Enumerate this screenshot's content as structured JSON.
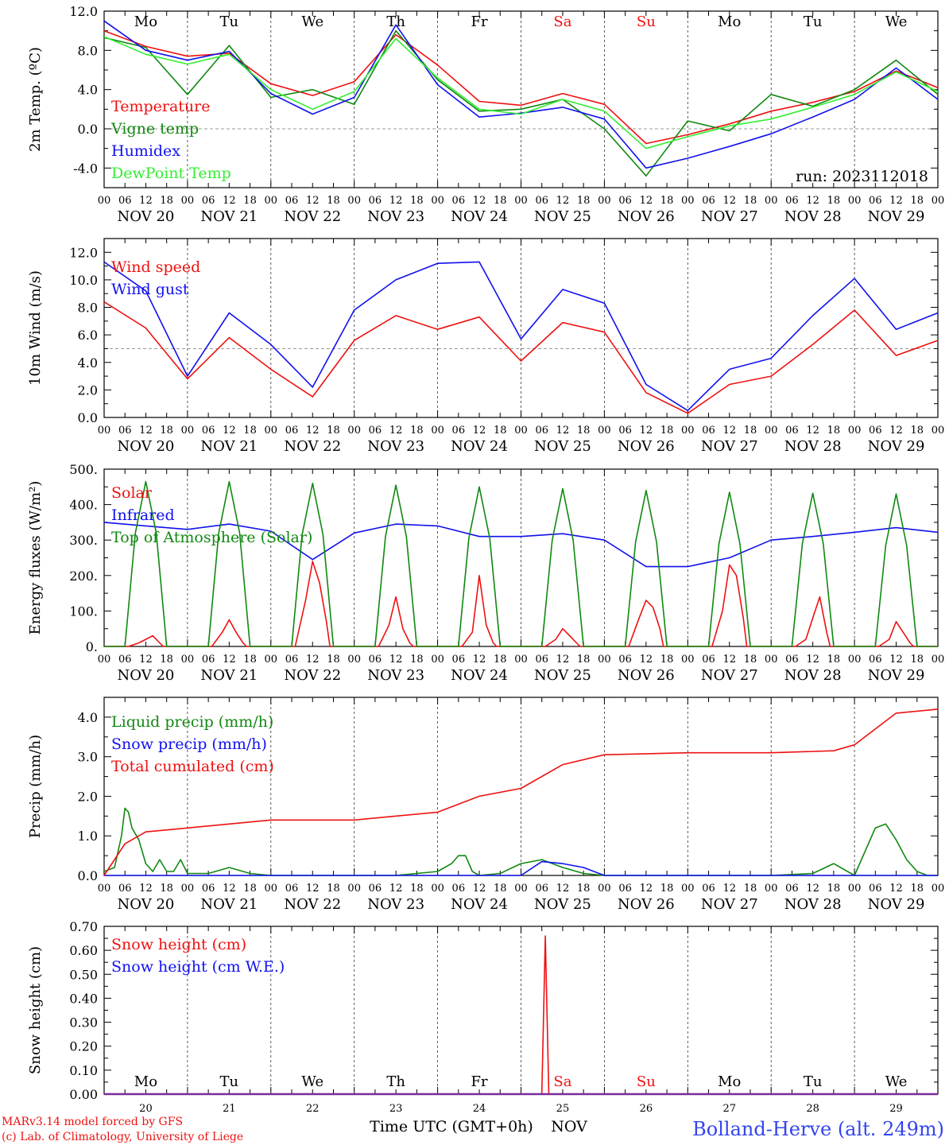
{
  "colors": {
    "red": "#ee1111",
    "green": "#118811",
    "blue": "#1111ee",
    "lime": "#33ee33",
    "grey": "#9a9a9a"
  },
  "days_of_week": [
    "Mo",
    "Tu",
    "We",
    "Th",
    "Fr",
    "Sa",
    "Su",
    "Mo",
    "Tu",
    "We"
  ],
  "weekend_days": [
    5,
    6
  ],
  "dates": [
    "NOV 20",
    "NOV 21",
    "NOV 22",
    "NOV 23",
    "NOV 24",
    "NOV 25",
    "NOV 26",
    "NOV 27",
    "NOV 28",
    "NOV 29"
  ],
  "hour_ticks": [
    "00",
    "06",
    "12",
    "18"
  ],
  "final_hour_tick": "00",
  "run_label": "run: 2023112018",
  "footer": {
    "model": "MARv3.14 model forced by GFS",
    "credit": "(c) Lab. of Climatology, University of Liege",
    "xlabel": "Time UTC (GMT+0h)",
    "month": "NOV",
    "day_numbers": [
      "20",
      "21",
      "22",
      "23",
      "24",
      "25",
      "26",
      "27",
      "28",
      "29"
    ],
    "station": "Bolland-Herve (alt. 249m)"
  },
  "chart_data": [
    {
      "type": "line",
      "ylabel": "2m Temp. (ºC)",
      "ylim": [
        -6,
        12
      ],
      "yticks": [
        "12.0",
        "8.0",
        "4.0",
        "0.0",
        "-4.0"
      ],
      "ytick_values": [
        12,
        8,
        4,
        0,
        -4
      ],
      "zero_line": 0,
      "x_unit": "hours since NOV 20 00 UTC",
      "series": [
        {
          "name": "Temperature",
          "color": "#ee1111",
          "x": [
            0,
            12,
            24,
            36,
            48,
            60,
            72,
            84,
            96,
            108,
            120,
            132,
            144,
            156,
            168,
            180,
            192,
            204,
            216,
            228,
            240
          ],
          "values": [
            10.0,
            8.4,
            7.4,
            7.7,
            4.6,
            3.4,
            4.8,
            9.6,
            6.5,
            2.8,
            2.4,
            3.6,
            2.5,
            -1.5,
            -0.6,
            0.5,
            1.8,
            2.7,
            3.8,
            5.9,
            4.2
          ]
        },
        {
          "name": "Vigne temp",
          "color": "#118811",
          "x": [
            0,
            12,
            24,
            36,
            48,
            60,
            72,
            84,
            96,
            108,
            120,
            132,
            144,
            156,
            168,
            180,
            192,
            204,
            216,
            228,
            240
          ],
          "values": [
            9.3,
            8.3,
            3.5,
            8.5,
            3.2,
            4.0,
            2.5,
            10.0,
            5.0,
            1.8,
            2.0,
            3.0,
            0.0,
            -4.8,
            0.8,
            -0.2,
            3.5,
            2.3,
            4.0,
            7.0,
            3.5
          ]
        },
        {
          "name": "Humidex",
          "color": "#1111ee",
          "x": [
            0,
            12,
            24,
            36,
            48,
            60,
            72,
            84,
            96,
            108,
            120,
            132,
            144,
            156,
            168,
            180,
            192,
            204,
            216,
            228,
            240
          ],
          "values": [
            11.0,
            8.0,
            7.0,
            7.9,
            3.6,
            1.5,
            3.2,
            10.6,
            4.5,
            1.2,
            1.6,
            2.2,
            1.0,
            -4.0,
            -3.0,
            -1.8,
            -0.5,
            1.2,
            3.0,
            6.2,
            3.0
          ]
        },
        {
          "name": "DewPoint Temp",
          "color": "#33ee33",
          "x": [
            0,
            12,
            24,
            36,
            48,
            60,
            72,
            84,
            96,
            108,
            120,
            132,
            144,
            156,
            168,
            180,
            192,
            204,
            216,
            228,
            240
          ],
          "values": [
            9.4,
            7.6,
            6.6,
            7.6,
            4.0,
            2.0,
            3.8,
            9.2,
            5.2,
            2.0,
            1.5,
            3.0,
            1.8,
            -2.0,
            -0.8,
            0.3,
            1.0,
            2.2,
            3.5,
            5.8,
            3.8
          ]
        }
      ]
    },
    {
      "type": "line",
      "ylabel": "10m Wind (m/s)",
      "ylim": [
        0,
        13
      ],
      "yticks": [
        "12.0",
        "10.0",
        "8.0",
        "6.0",
        "4.0",
        "2.0",
        "0.0"
      ],
      "ytick_values": [
        12,
        10,
        8,
        6,
        4,
        2,
        0
      ],
      "reference_line": 5,
      "x_unit": "hours since NOV 20 00 UTC",
      "series": [
        {
          "name": "Wind speed",
          "color": "#ee1111",
          "x": [
            0,
            12,
            24,
            36,
            48,
            60,
            72,
            84,
            96,
            108,
            120,
            132,
            144,
            156,
            168,
            180,
            192,
            204,
            216,
            228,
            240
          ],
          "values": [
            8.4,
            6.5,
            2.8,
            5.8,
            3.5,
            1.5,
            5.6,
            7.4,
            6.4,
            7.3,
            4.1,
            6.9,
            6.2,
            1.8,
            0.3,
            2.4,
            3.0,
            5.3,
            7.8,
            4.5,
            5.6
          ]
        },
        {
          "name": "Wind gust",
          "color": "#1111ee",
          "x": [
            0,
            12,
            24,
            36,
            48,
            60,
            72,
            84,
            96,
            108,
            120,
            132,
            144,
            156,
            168,
            180,
            192,
            204,
            216,
            228,
            240
          ],
          "values": [
            11.3,
            9.2,
            3.0,
            7.6,
            5.3,
            2.2,
            7.8,
            10.0,
            11.2,
            11.3,
            5.7,
            9.3,
            8.3,
            2.4,
            0.5,
            3.5,
            4.3,
            7.4,
            10.1,
            6.4,
            7.6
          ]
        }
      ]
    },
    {
      "type": "line",
      "ylabel": "Energy fluxes (W/m²)",
      "ylim": [
        0,
        500
      ],
      "yticks": [
        "500.",
        "400.",
        "300.",
        "200.",
        "100.",
        "0."
      ],
      "ytick_values": [
        500,
        400,
        300,
        200,
        100,
        0
      ],
      "x_unit": "hours since NOV 20 00 UTC",
      "series": [
        {
          "name": "Solar",
          "color": "#ee1111",
          "x": [
            0,
            7,
            10,
            12,
            14,
            16,
            17,
            24,
            31,
            34,
            36,
            38,
            40,
            41,
            48,
            55,
            58,
            60,
            62,
            64,
            65,
            72,
            79,
            82,
            84,
            86,
            88,
            89,
            96,
            103,
            106,
            108,
            110,
            112,
            113,
            120,
            127,
            130,
            132,
            134,
            136,
            137,
            144,
            151,
            154,
            156,
            158,
            160,
            161,
            168,
            175,
            178,
            180,
            182,
            184,
            185,
            192,
            199,
            202,
            204,
            206,
            208,
            209,
            216,
            223,
            226,
            228,
            230,
            232,
            233,
            240
          ],
          "values": [
            0,
            0,
            10,
            20,
            30,
            10,
            0,
            0,
            0,
            40,
            75,
            40,
            10,
            0,
            0,
            0,
            130,
            240,
            180,
            70,
            0,
            0,
            0,
            60,
            140,
            50,
            10,
            0,
            0,
            0,
            40,
            200,
            60,
            10,
            0,
            0,
            0,
            20,
            50,
            30,
            10,
            0,
            0,
            0,
            80,
            130,
            110,
            50,
            0,
            0,
            0,
            100,
            230,
            200,
            80,
            0,
            0,
            0,
            20,
            80,
            140,
            40,
            0,
            0,
            0,
            20,
            70,
            40,
            10,
            0,
            0
          ]
        },
        {
          "name": "Infrared",
          "color": "#1111ee",
          "x": [
            0,
            12,
            24,
            36,
            48,
            60,
            72,
            84,
            96,
            108,
            120,
            132,
            144,
            156,
            168,
            180,
            192,
            204,
            216,
            228,
            240
          ],
          "values": [
            350,
            340,
            330,
            345,
            325,
            245,
            320,
            345,
            340,
            310,
            310,
            318,
            300,
            225,
            225,
            250,
            300,
            310,
            322,
            335,
            322
          ]
        },
        {
          "name": "Top of Atmosphere (Solar)",
          "color": "#118811",
          "x": [
            0,
            6,
            9,
            12,
            15,
            18,
            24,
            30,
            33,
            36,
            39,
            42,
            48,
            54,
            57,
            60,
            63,
            66,
            72,
            78,
            81,
            84,
            87,
            90,
            96,
            102,
            105,
            108,
            111,
            114,
            120,
            126,
            129,
            132,
            135,
            138,
            144,
            150,
            153,
            156,
            159,
            162,
            168,
            174,
            177,
            180,
            183,
            186,
            192,
            198,
            201,
            204,
            207,
            210,
            216,
            222,
            225,
            228,
            231,
            234,
            240
          ],
          "values": [
            0,
            0,
            320,
            465,
            320,
            0,
            0,
            0,
            320,
            465,
            320,
            0,
            0,
            0,
            315,
            460,
            315,
            0,
            0,
            0,
            310,
            455,
            310,
            0,
            0,
            0,
            305,
            450,
            305,
            0,
            0,
            0,
            300,
            445,
            300,
            0,
            0,
            0,
            295,
            440,
            295,
            0,
            0,
            0,
            290,
            435,
            290,
            0,
            0,
            0,
            290,
            432,
            290,
            0,
            0,
            0,
            285,
            430,
            285,
            0,
            0
          ]
        }
      ]
    },
    {
      "type": "line",
      "ylabel": "Precip (mm/h)",
      "ylim": [
        0,
        4.5
      ],
      "yticks": [
        "4.0",
        "3.0",
        "2.0",
        "1.0",
        "0.0"
      ],
      "ytick_values": [
        4,
        3,
        2,
        1,
        0
      ],
      "x_unit": "hours since NOV 20 00 UTC",
      "series": [
        {
          "name": "Liquid precip (mm/h)",
          "color": "#118811",
          "x": [
            0,
            3,
            5,
            6,
            7,
            8,
            10,
            12,
            14,
            16,
            18,
            20,
            22,
            24,
            30,
            36,
            42,
            48,
            84,
            96,
            100,
            102,
            104,
            106,
            108,
            114,
            120,
            126,
            132,
            138,
            144,
            192,
            204,
            210,
            216,
            222,
            225,
            228,
            231,
            234,
            237,
            240
          ],
          "values": [
            0.1,
            0.2,
            1.0,
            1.7,
            1.6,
            1.2,
            0.9,
            0.3,
            0.1,
            0.4,
            0.1,
            0.1,
            0.4,
            0.05,
            0.05,
            0.2,
            0.05,
            0.0,
            0.0,
            0.1,
            0.3,
            0.5,
            0.5,
            0.1,
            0.0,
            0.05,
            0.3,
            0.4,
            0.2,
            0.05,
            0.0,
            0.0,
            0.05,
            0.3,
            0.0,
            1.2,
            1.3,
            0.9,
            0.4,
            0.1,
            0.0,
            0.0
          ]
        },
        {
          "name": "Snow precip (mm/h)",
          "color": "#1111ee",
          "x": [
            0,
            96,
            120,
            126,
            132,
            138,
            144,
            240
          ],
          "values": [
            0,
            0,
            0,
            0.35,
            0.3,
            0.2,
            0,
            0
          ]
        },
        {
          "name": "Total cumulated (cm)",
          "color": "#ee1111",
          "x": [
            0,
            6,
            12,
            24,
            48,
            72,
            96,
            108,
            120,
            132,
            144,
            168,
            192,
            210,
            216,
            222,
            228,
            240
          ],
          "values": [
            0.0,
            0.8,
            1.1,
            1.2,
            1.4,
            1.4,
            1.6,
            2.0,
            2.2,
            2.8,
            3.05,
            3.1,
            3.1,
            3.15,
            3.3,
            3.7,
            4.1,
            4.2
          ]
        }
      ]
    },
    {
      "type": "line",
      "ylabel": "Snow height (cm)",
      "ylim": [
        0,
        0.7
      ],
      "yticks": [
        "0.70",
        "0.60",
        "0.50",
        "0.40",
        "0.30",
        "0.20",
        "0.10",
        "0.00"
      ],
      "ytick_values": [
        0.7,
        0.6,
        0.5,
        0.4,
        0.3,
        0.2,
        0.1,
        0.0
      ],
      "x_unit": "hours since NOV 20 00 UTC",
      "series": [
        {
          "name": "Snow height (cm)",
          "color": "#ee1111",
          "x": [
            0,
            126,
            127,
            128,
            240
          ],
          "values": [
            0,
            0,
            0.66,
            0,
            0
          ]
        },
        {
          "name": "Snow height (cm W.E.)",
          "color": "#1111ee",
          "x": [
            0,
            240
          ],
          "values": [
            0,
            0
          ]
        }
      ]
    }
  ]
}
